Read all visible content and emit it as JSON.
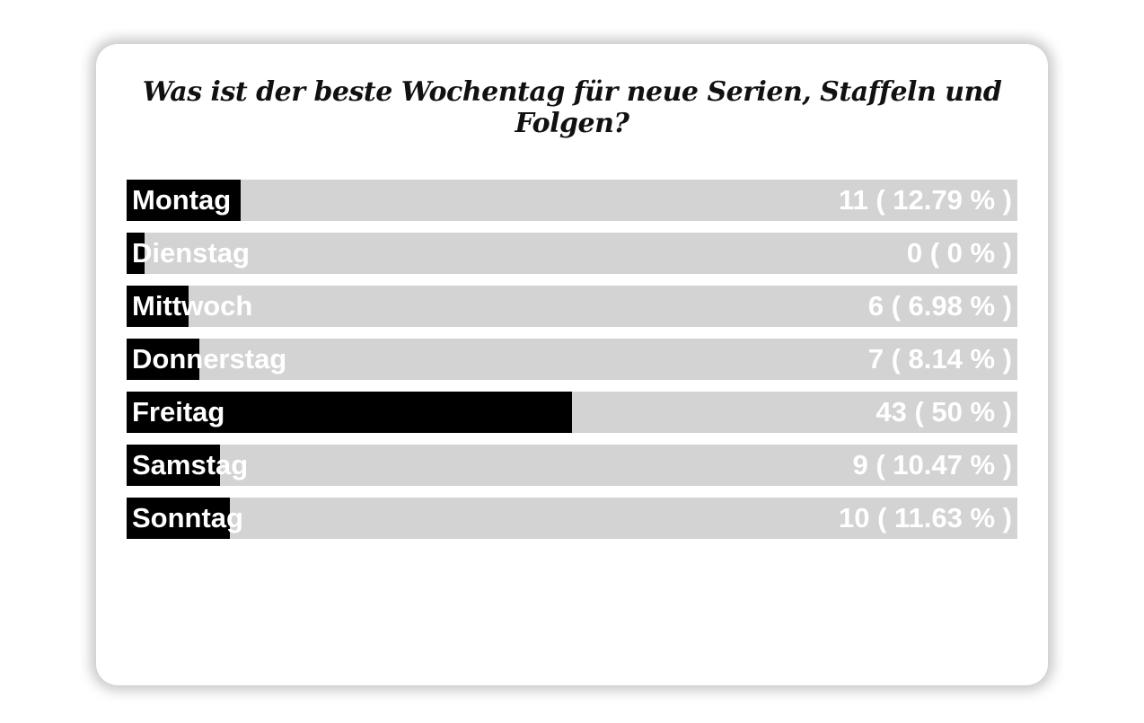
{
  "poll": {
    "question": "Was ist der beste Wochentag für neue Serien, Staffeln und Folgen?"
  },
  "colors": {
    "bar_fill": "#000000",
    "bar_track": "#d3d3d3",
    "label_text": "#ffffff"
  },
  "chart_data": {
    "type": "bar",
    "orientation": "horizontal",
    "title": "Was ist der beste Wochentag für neue Serien, Staffeln und Folgen?",
    "categories": [
      "Montag",
      "Dienstag",
      "Mittwoch",
      "Donnerstag",
      "Freitag",
      "Samstag",
      "Sonntag"
    ],
    "values": [
      11,
      0,
      6,
      7,
      43,
      9,
      10
    ],
    "percents": [
      12.79,
      0,
      6.98,
      8.14,
      50,
      10.47,
      11.63
    ],
    "value_labels": [
      "11 ( 12.79 % )",
      "0 ( 0 % )",
      "6 ( 6.98 % )",
      "7 ( 8.14 % )",
      "43 ( 50 % )",
      "9 ( 10.47 % )",
      "10 ( 11.63 % )"
    ],
    "xlim": [
      0,
      100
    ],
    "grid": false,
    "legend": "none"
  }
}
